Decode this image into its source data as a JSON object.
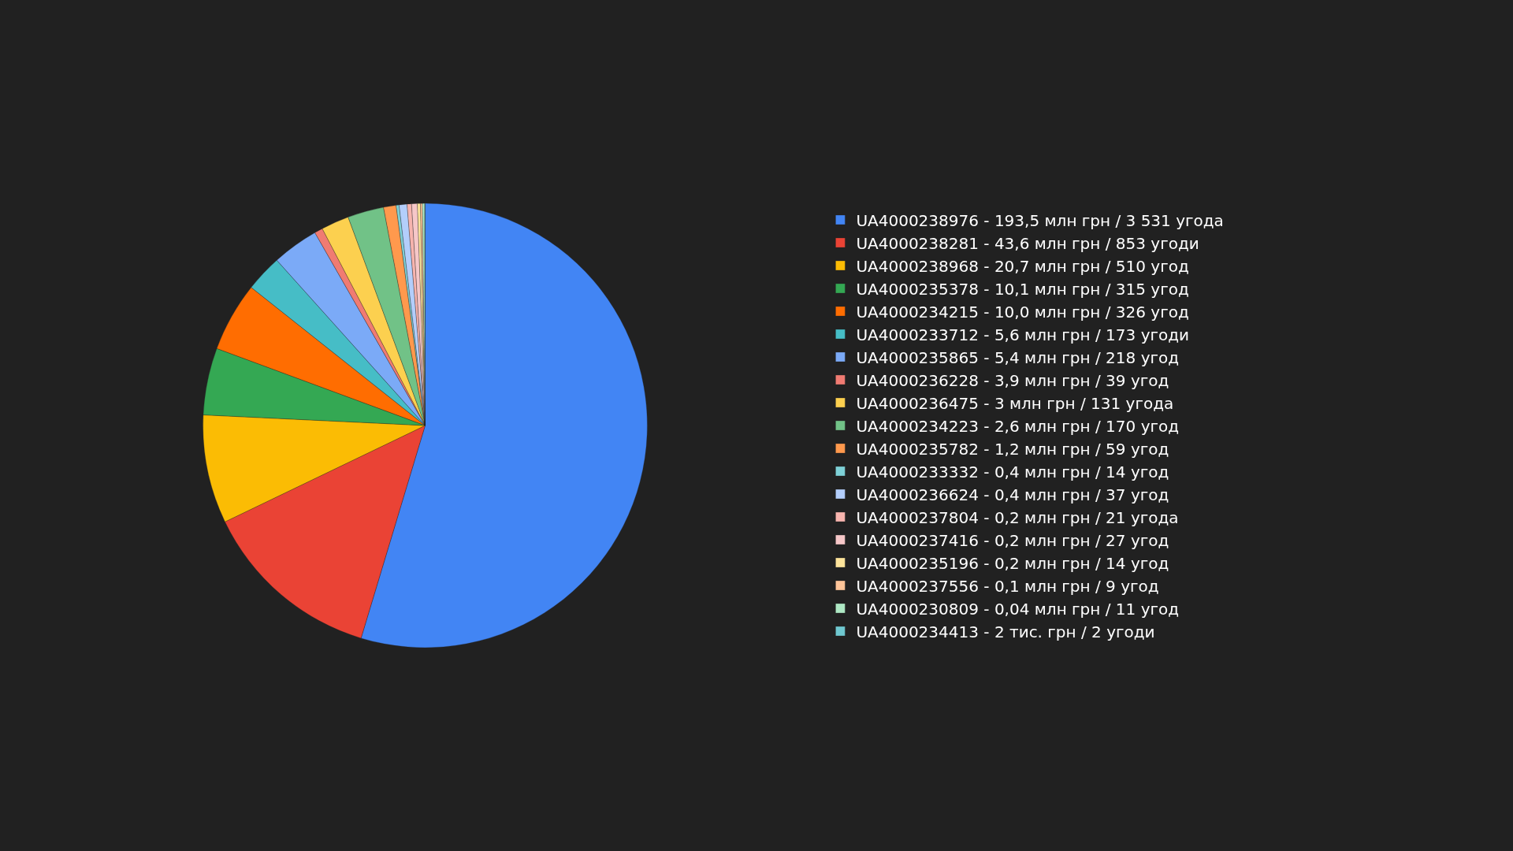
{
  "chart_data": {
    "type": "pie",
    "categories": [
      "UA4000238976 - 193,5 млн грн / 3 531 угода",
      "UA4000238281 - 43,6 млн грн / 853 угоди",
      "UA4000238968 - 20,7 млн грн / 510 угод",
      "UA4000235378 - 10,1 млн грн / 315 угод",
      "UA4000234215 - 10,0 млн грн / 326 угод",
      "UA4000233712 - 5,6 млн грн / 173 угоди",
      "UA4000235865 - 5,4 млн грн / 218 угод",
      "UA4000236228 - 3,9 млн грн / 39 угод",
      "UA4000236475 - 3 млн грн / 131 угода",
      "UA4000234223 - 2,6 млн грн / 170 угод",
      "UA4000235782 - 1,2 млн грн / 59 угод",
      "UA4000233332 - 0,4 млн грн / 14 угод",
      "UA4000236624 - 0,4 млн грн / 37 угод",
      "UA4000237804 - 0,2 млн грн / 21 угода",
      "UA4000237416 - 0,2 млн грн / 27 угод",
      "UA4000235196 - 0,2 млн грн / 14 угод",
      "UA4000237556 - 0,1 млн грн / 9 угод",
      "UA4000230809 - 0,04 млн грн / 11 угод",
      "UA4000234413 - 2 тис. грн / 2 угоди"
    ],
    "values": [
      3531,
      853,
      510,
      315,
      326,
      173,
      218,
      39,
      131,
      170,
      59,
      14,
      37,
      21,
      27,
      14,
      9,
      11,
      2
    ],
    "colors": [
      "#4285f4",
      "#ea4335",
      "#fbbc04",
      "#34a853",
      "#ff6d01",
      "#46bdc6",
      "#7baaf7",
      "#f07b72",
      "#fcd04f",
      "#71c287",
      "#ff994d",
      "#7ed1d7",
      "#b3cefb",
      "#f7b4ae",
      "#f6c7c8",
      "#fde49b",
      "#ffc599",
      "#aee8c4",
      "#6fc8d0"
    ],
    "legend": "right"
  }
}
